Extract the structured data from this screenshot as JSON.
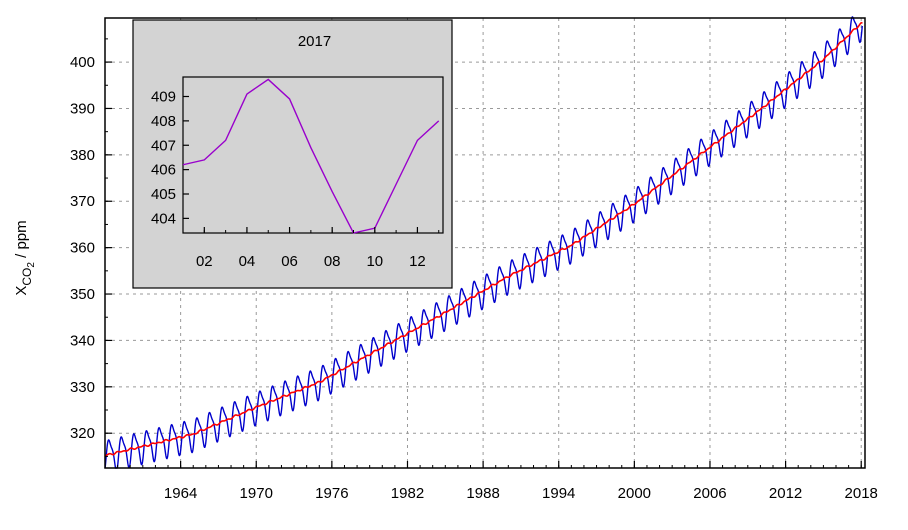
{
  "chart_data": [
    {
      "type": "line",
      "name": "main",
      "ylabel_main": "X",
      "ylabel_sub": "CO",
      "ylabel_subsub": "2",
      "ylabel_unit": " / ppm",
      "xlim": [
        1958.0,
        2018.3
      ],
      "ylim": [
        312.5,
        409.5
      ],
      "x_ticks": [
        1964,
        1970,
        1976,
        1982,
        1988,
        1994,
        2000,
        2006,
        2012,
        2018
      ],
      "y_ticks": [
        320,
        330,
        340,
        350,
        360,
        370,
        380,
        390,
        400
      ],
      "series": [
        {
          "name": "monthly",
          "color": "#0000cc",
          "trend_anchor_years": [
            1958,
            1965,
            1970,
            1975,
            1980,
            1985,
            1990,
            1995,
            2000,
            2005,
            2010,
            2015,
            2018
          ],
          "trend_anchor_values": [
            315.2,
            319.8,
            325.6,
            331.0,
            338.5,
            346.0,
            353.8,
            360.5,
            369.4,
            379.6,
            389.8,
            400.6,
            408.4
          ],
          "seasonal_amplitude_ppm": 3.2
        },
        {
          "name": "trend",
          "color": "#ff0000",
          "x": [
            1958,
            1965,
            1970,
            1975,
            1980,
            1985,
            1990,
            1995,
            2000,
            2005,
            2010,
            2015,
            2018
          ],
          "y": [
            315.2,
            319.8,
            325.6,
            331.0,
            338.5,
            346.0,
            353.8,
            360.5,
            369.4,
            379.6,
            389.8,
            400.6,
            408.4
          ]
        }
      ]
    },
    {
      "type": "line",
      "name": "inset",
      "title": "2017",
      "background": "#d3d3d3",
      "x_tick_labels": [
        "02",
        "04",
        "06",
        "08",
        "10",
        "12"
      ],
      "x_ticks": [
        2,
        4,
        6,
        8,
        10,
        12
      ],
      "xlim": [
        1.0,
        13.2
      ],
      "y_ticks": [
        404,
        405,
        406,
        407,
        408,
        409
      ],
      "ylim": [
        403.4,
        409.8
      ],
      "series": [
        {
          "name": "2017 monthly",
          "color": "#9900cc",
          "x": [
            1,
            2,
            3,
            4,
            5,
            6,
            7,
            8,
            9,
            10,
            11,
            12,
            13
          ],
          "y": [
            406.2,
            406.4,
            407.2,
            409.1,
            409.7,
            408.9,
            406.9,
            405.1,
            403.4,
            403.6,
            405.4,
            407.2,
            408.0
          ]
        }
      ]
    }
  ]
}
